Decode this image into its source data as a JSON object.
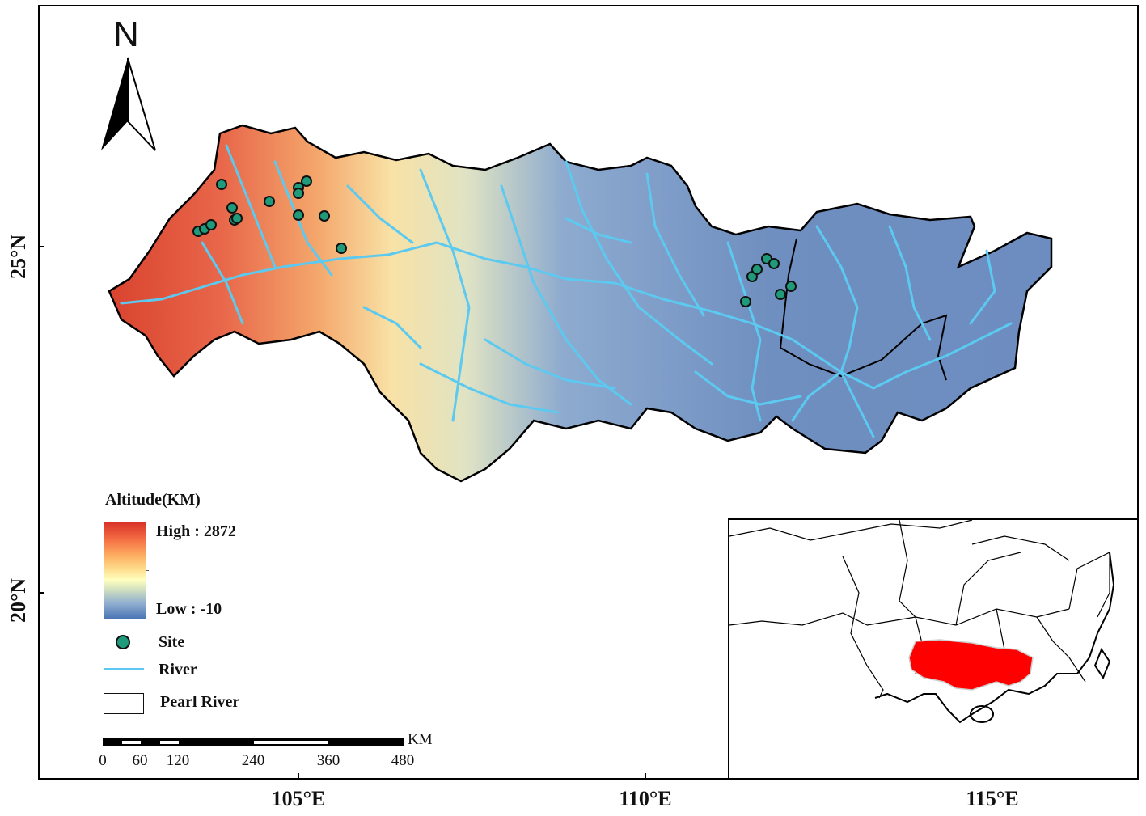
{
  "map": {
    "north_arrow_letter": "N",
    "latitude_labels": [
      "25°N",
      "20°N"
    ],
    "longitude_labels": [
      "105°E",
      "110°E",
      "115°E"
    ],
    "elevation_ramp_colors": [
      "#d73027",
      "#fdae61",
      "#ffffbf",
      "#91afd0",
      "#4a74b4"
    ],
    "river_color": "#5ccaf0",
    "site_color": "#1f9a7a",
    "basin_outline_color": "#000000",
    "inset_highlight_color": "#ff0000"
  },
  "legend": {
    "title": "Altitude(KM)",
    "high_label": "High : 2872",
    "low_label": "Low : -10",
    "site_label": "Site",
    "river_label": "River",
    "basin_label": "Pearl River"
  },
  "scale_bar": {
    "unit": "KM",
    "ticks": [
      "0",
      "60",
      "120",
      "240",
      "360",
      "480"
    ]
  }
}
